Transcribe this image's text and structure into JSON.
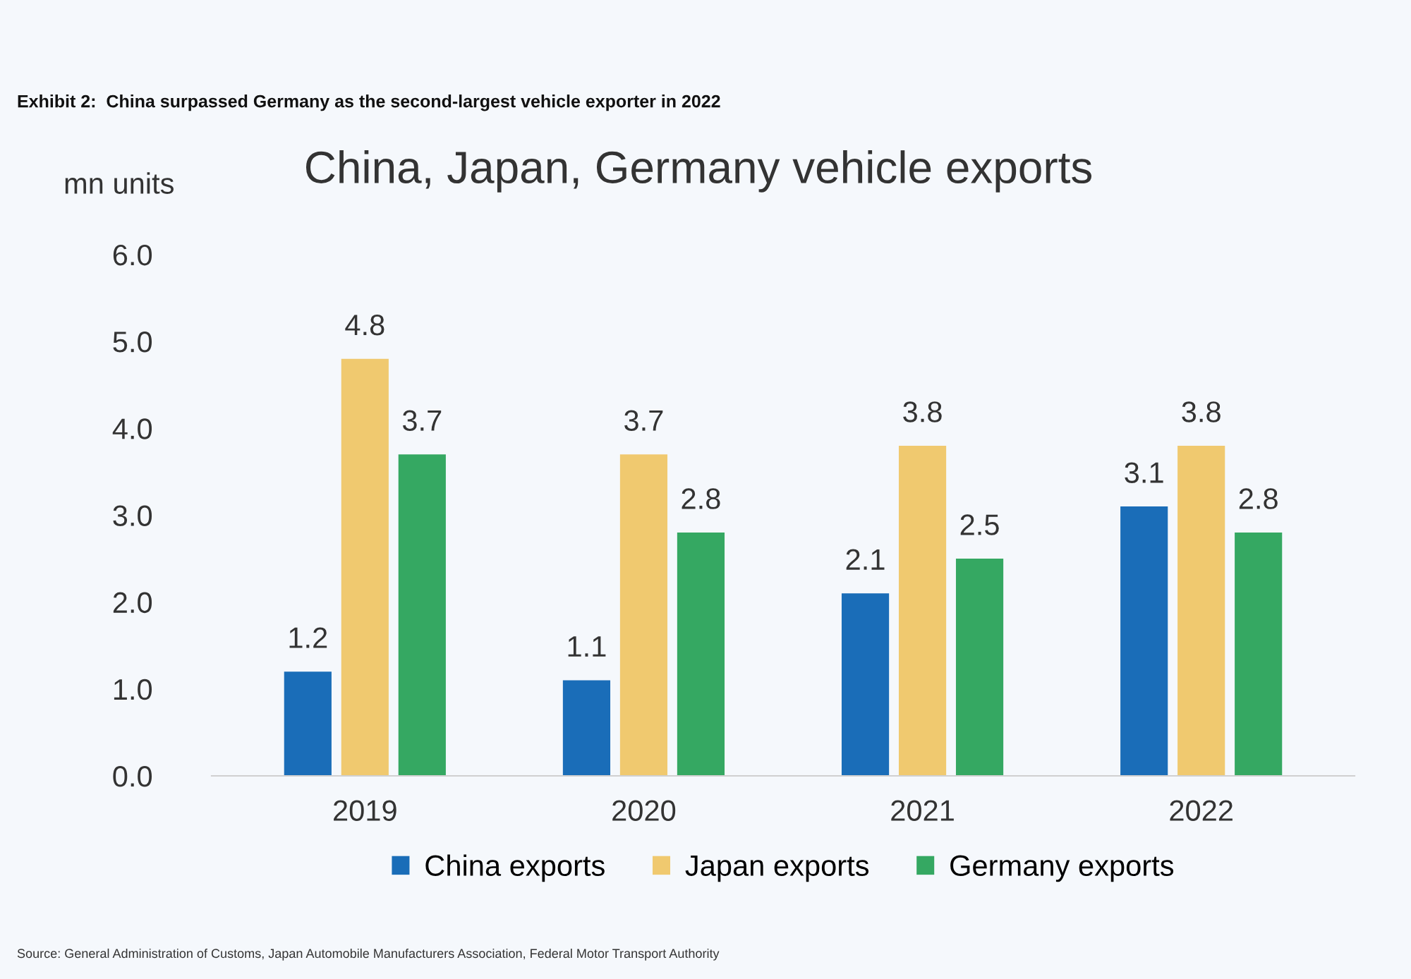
{
  "chart_data": {
    "type": "bar",
    "title": "China, Japan, Germany vehicle exports",
    "subtitle": "Exhibit 2:  China surpassed Germany as the second-largest vehicle exporter in 2022",
    "ylabel": "mn units",
    "categories": [
      "2019",
      "2020",
      "2021",
      "2022"
    ],
    "series": [
      {
        "name": "China exports",
        "color": "#1a6db8",
        "values": [
          1.2,
          1.1,
          2.1,
          3.1
        ]
      },
      {
        "name": "Japan exports",
        "color": "#f0c96f",
        "values": [
          4.8,
          3.7,
          3.8,
          3.8
        ]
      },
      {
        "name": "Germany exports",
        "color": "#35a862",
        "values": [
          3.7,
          2.8,
          2.5,
          2.8
        ]
      }
    ],
    "ylim": [
      0,
      6
    ],
    "yticks": [
      {
        "value": 0,
        "label": "0.0"
      },
      {
        "value": 1,
        "label": "1.0"
      },
      {
        "value": 2,
        "label": "2.0"
      },
      {
        "value": 3,
        "label": "3.0"
      },
      {
        "value": 4,
        "label": "4.0"
      },
      {
        "value": 5,
        "label": "5.0"
      },
      {
        "value": 6,
        "label": "6.0"
      }
    ],
    "data_labels": true,
    "grid": false,
    "legend": "bottom",
    "annotations": [
      "Source: General Administration of Customs, Japan Automobile Manufacturers Association, Federal Motor Transport Authority"
    ]
  }
}
